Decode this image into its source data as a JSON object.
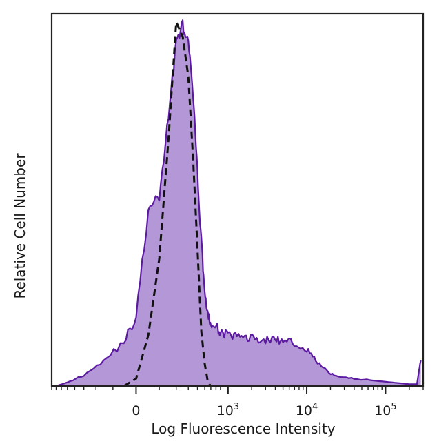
{
  "chart_data": {
    "type": "area",
    "title": "",
    "xlabel": "Log Fluorescence Intensity",
    "ylabel": "Relative Cell Number",
    "x_scale": "biexponential",
    "xlim": [
      -800,
      300000
    ],
    "ylim": [
      0,
      100
    ],
    "grid": false,
    "legend": "none",
    "x_ticks": [
      {
        "value": 0,
        "base": "0",
        "exp": ""
      },
      {
        "value": 1000,
        "base": "10",
        "exp": "3"
      },
      {
        "value": 10000,
        "base": "10",
        "exp": "4"
      },
      {
        "value": 100000,
        "base": "10",
        "exp": "5"
      }
    ],
    "series": [
      {
        "style": "filled",
        "color": "#5b1aa0",
        "fill": "#b497d6",
        "x": [
          -700,
          -500,
          -300,
          -150,
          -50,
          0,
          50,
          100,
          150,
          200,
          250,
          300,
          350,
          400,
          450,
          500,
          550,
          600,
          700,
          800,
          1000,
          1300,
          1700,
          2200,
          3000,
          4000,
          5000,
          7000,
          10000,
          13000,
          18000,
          25000,
          40000,
          70000,
          120000,
          200000,
          250000,
          280000
        ],
        "y": [
          0,
          1,
          3,
          7,
          12,
          19,
          48,
          52,
          74,
          95,
          99,
          94,
          80,
          58,
          40,
          26,
          19,
          17,
          16,
          15,
          14,
          13.5,
          13.5,
          13,
          12.5,
          13,
          12,
          12,
          10,
          7,
          4,
          2.5,
          2,
          1.5,
          1,
          0.5,
          0.5,
          7
        ]
      },
      {
        "style": "dashed",
        "color": "#111111",
        "x": [
          -50,
          0,
          50,
          100,
          150,
          200,
          250,
          300,
          350,
          400,
          450,
          500,
          550,
          600
        ],
        "y": [
          0,
          2,
          14,
          35,
          68,
          100,
          96,
          85,
          62,
          38,
          15,
          6,
          1,
          0
        ]
      }
    ]
  }
}
